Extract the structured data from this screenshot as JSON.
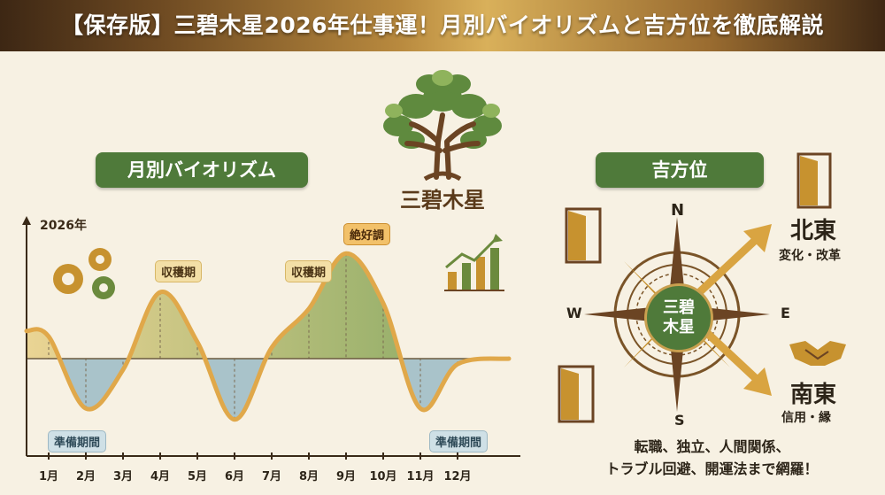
{
  "banner": {
    "title": "【保存版】三碧木星2026年仕事運！月別バイオリズムと吉方位を徹底解説"
  },
  "tree": {
    "label": "三碧木星"
  },
  "biorhythm": {
    "title": "月別バイオリズム",
    "year_label": "2026年",
    "tags": {
      "harvest_1": "収穫期",
      "harvest_2": "収穫期",
      "best": "絶好調",
      "prep_1": "準備期間",
      "prep_2": "準備期間"
    },
    "months": [
      "1月",
      "2月",
      "3月",
      "4月",
      "5月",
      "6月",
      "7月",
      "8月",
      "9月",
      "10月",
      "11月",
      "12月"
    ]
  },
  "chart_data": {
    "type": "line",
    "title": "月別バイオリズム",
    "categories": [
      "1月",
      "2月",
      "3月",
      "4月",
      "5月",
      "6月",
      "7月",
      "8月",
      "9月",
      "10月",
      "11月",
      "12月"
    ],
    "values": [
      0.2,
      -0.45,
      -0.1,
      0.6,
      0.15,
      -0.55,
      0.1,
      0.45,
      0.95,
      0.5,
      -0.45,
      -0.05
    ],
    "xlabel": "",
    "ylabel": "",
    "annotations": [
      {
        "text": "準備期間",
        "category": "2月"
      },
      {
        "text": "収穫期",
        "category": "4月"
      },
      {
        "text": "収穫期",
        "category": "8月"
      },
      {
        "text": "絶好調",
        "category": "9月"
      },
      {
        "text": "準備期間",
        "category": "11月"
      }
    ],
    "colors": {
      "positive": "#6e9a4a",
      "negative": "#8fb3c2",
      "line": "#e0a84a"
    }
  },
  "compass": {
    "title": "吉方位",
    "center_label": "三碧木星",
    "n": "N",
    "s": "S",
    "e": "E",
    "w": "W",
    "northeast": {
      "name": "北東",
      "desc": "変化・改革"
    },
    "southeast": {
      "name": "南東",
      "desc": "信用・縁"
    }
  },
  "note": {
    "line1": "転職、独立、人間関係、",
    "line2": "トラブル回避、開運法まで網羅！"
  },
  "icons": [
    "gears-icon",
    "bar-chart-growth-icon",
    "tree-icon",
    "door-icon",
    "handshake-icon",
    "compass-icon",
    "arrow-icon"
  ],
  "colors": {
    "accent_green": "#4f7a3a",
    "gold": "#d9a441",
    "banner_brown": "#6e4a22"
  }
}
